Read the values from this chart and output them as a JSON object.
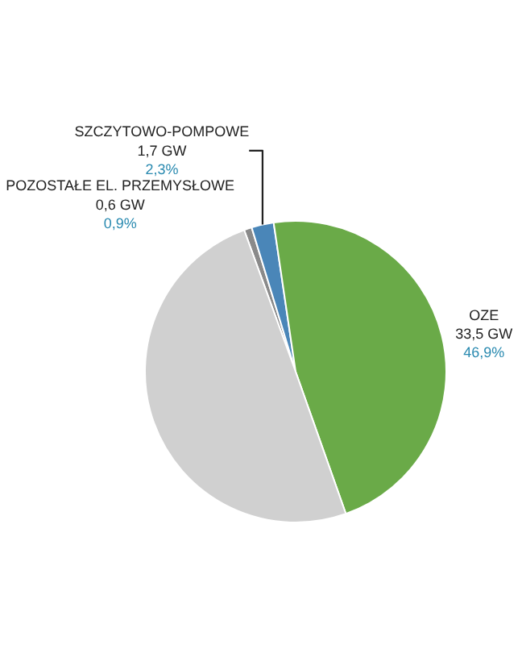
{
  "chart_data": {
    "type": "pie",
    "categories": [
      "POZOSTAŁE EL. PRZEMYSŁOWE",
      "SZCZYTOWO-POMPOWE",
      "OZE",
      null
    ],
    "values": [
      0.6,
      1.7,
      33.5,
      35.6
    ],
    "colors": [
      "#8a8a8a",
      "#4a86b8",
      "#6aaa48",
      "#d0d0d0"
    ],
    "value_labels": [
      "0,6 GW\n0,9%",
      "1,7 GW\n2,3%",
      "33,5 GW\n46,9%",
      null
    ]
  }
}
